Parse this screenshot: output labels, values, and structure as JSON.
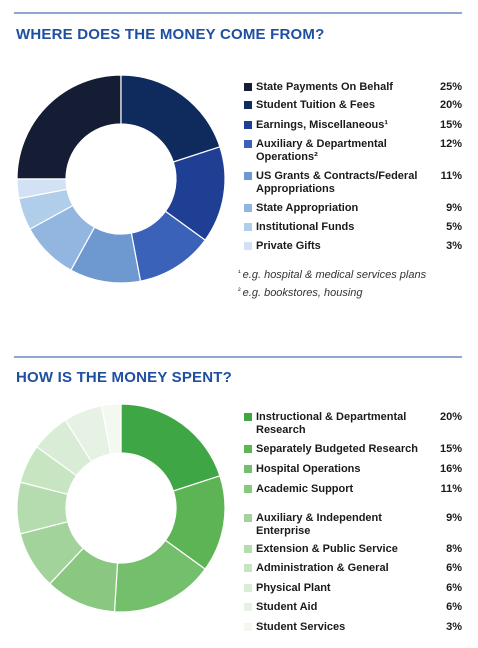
{
  "chart_data": [
    {
      "type": "donut",
      "title": "WHERE DOES THE MONEY COME FROM?",
      "categories": [
        "State Payments On Behalf",
        "Student Tuition & Fees",
        "Earnings, Miscellaneous¹",
        "Auxiliary & Departmental Operations²",
        "US Grants & Contracts/Federal Appropriations",
        "State Appropriation",
        "Institutional Funds",
        "Private Gifts"
      ],
      "values": [
        25,
        20,
        15,
        12,
        11,
        9,
        5,
        3
      ],
      "value_labels": [
        "25%",
        "20%",
        "15%",
        "12%",
        "11%",
        "9%",
        "5%",
        "3%"
      ],
      "colors": [
        "#141d33",
        "#0f2a5c",
        "#1f3f94",
        "#3a62b8",
        "#6d98d0",
        "#92b6df",
        "#b0cdea",
        "#d2e1f3"
      ],
      "footnotes": [
        {
          "marker": "¹",
          "text": "e.g. hospital & medical services plans"
        },
        {
          "marker": "²",
          "text": "e.g. bookstores, housing"
        }
      ]
    },
    {
      "type": "donut",
      "title": "HOW IS THE MONEY SPENT?",
      "categories": [
        "Instructional & Departmental Research",
        "Separately Budgeted Research",
        "Hospital Operations",
        "Academic Support",
        "Auxiliary & Independent Enterprise",
        "Extension & Public Service",
        "Administration & General",
        "Physical Plant",
        "Student Aid",
        "Student Services"
      ],
      "values": [
        20,
        15,
        16,
        11,
        9,
        8,
        6,
        6,
        6,
        3
      ],
      "value_labels": [
        "20%",
        "15%",
        "16%",
        "11%",
        "9%",
        "8%",
        "6%",
        "6%",
        "6%",
        "3%"
      ],
      "colors": [
        "#3fa646",
        "#5cb455",
        "#74bf6b",
        "#8ac882",
        "#a2d39a",
        "#b5dcae",
        "#c8e5c2",
        "#d9ecd5",
        "#e6f2e3",
        "#f3f8f1"
      ]
    }
  ]
}
